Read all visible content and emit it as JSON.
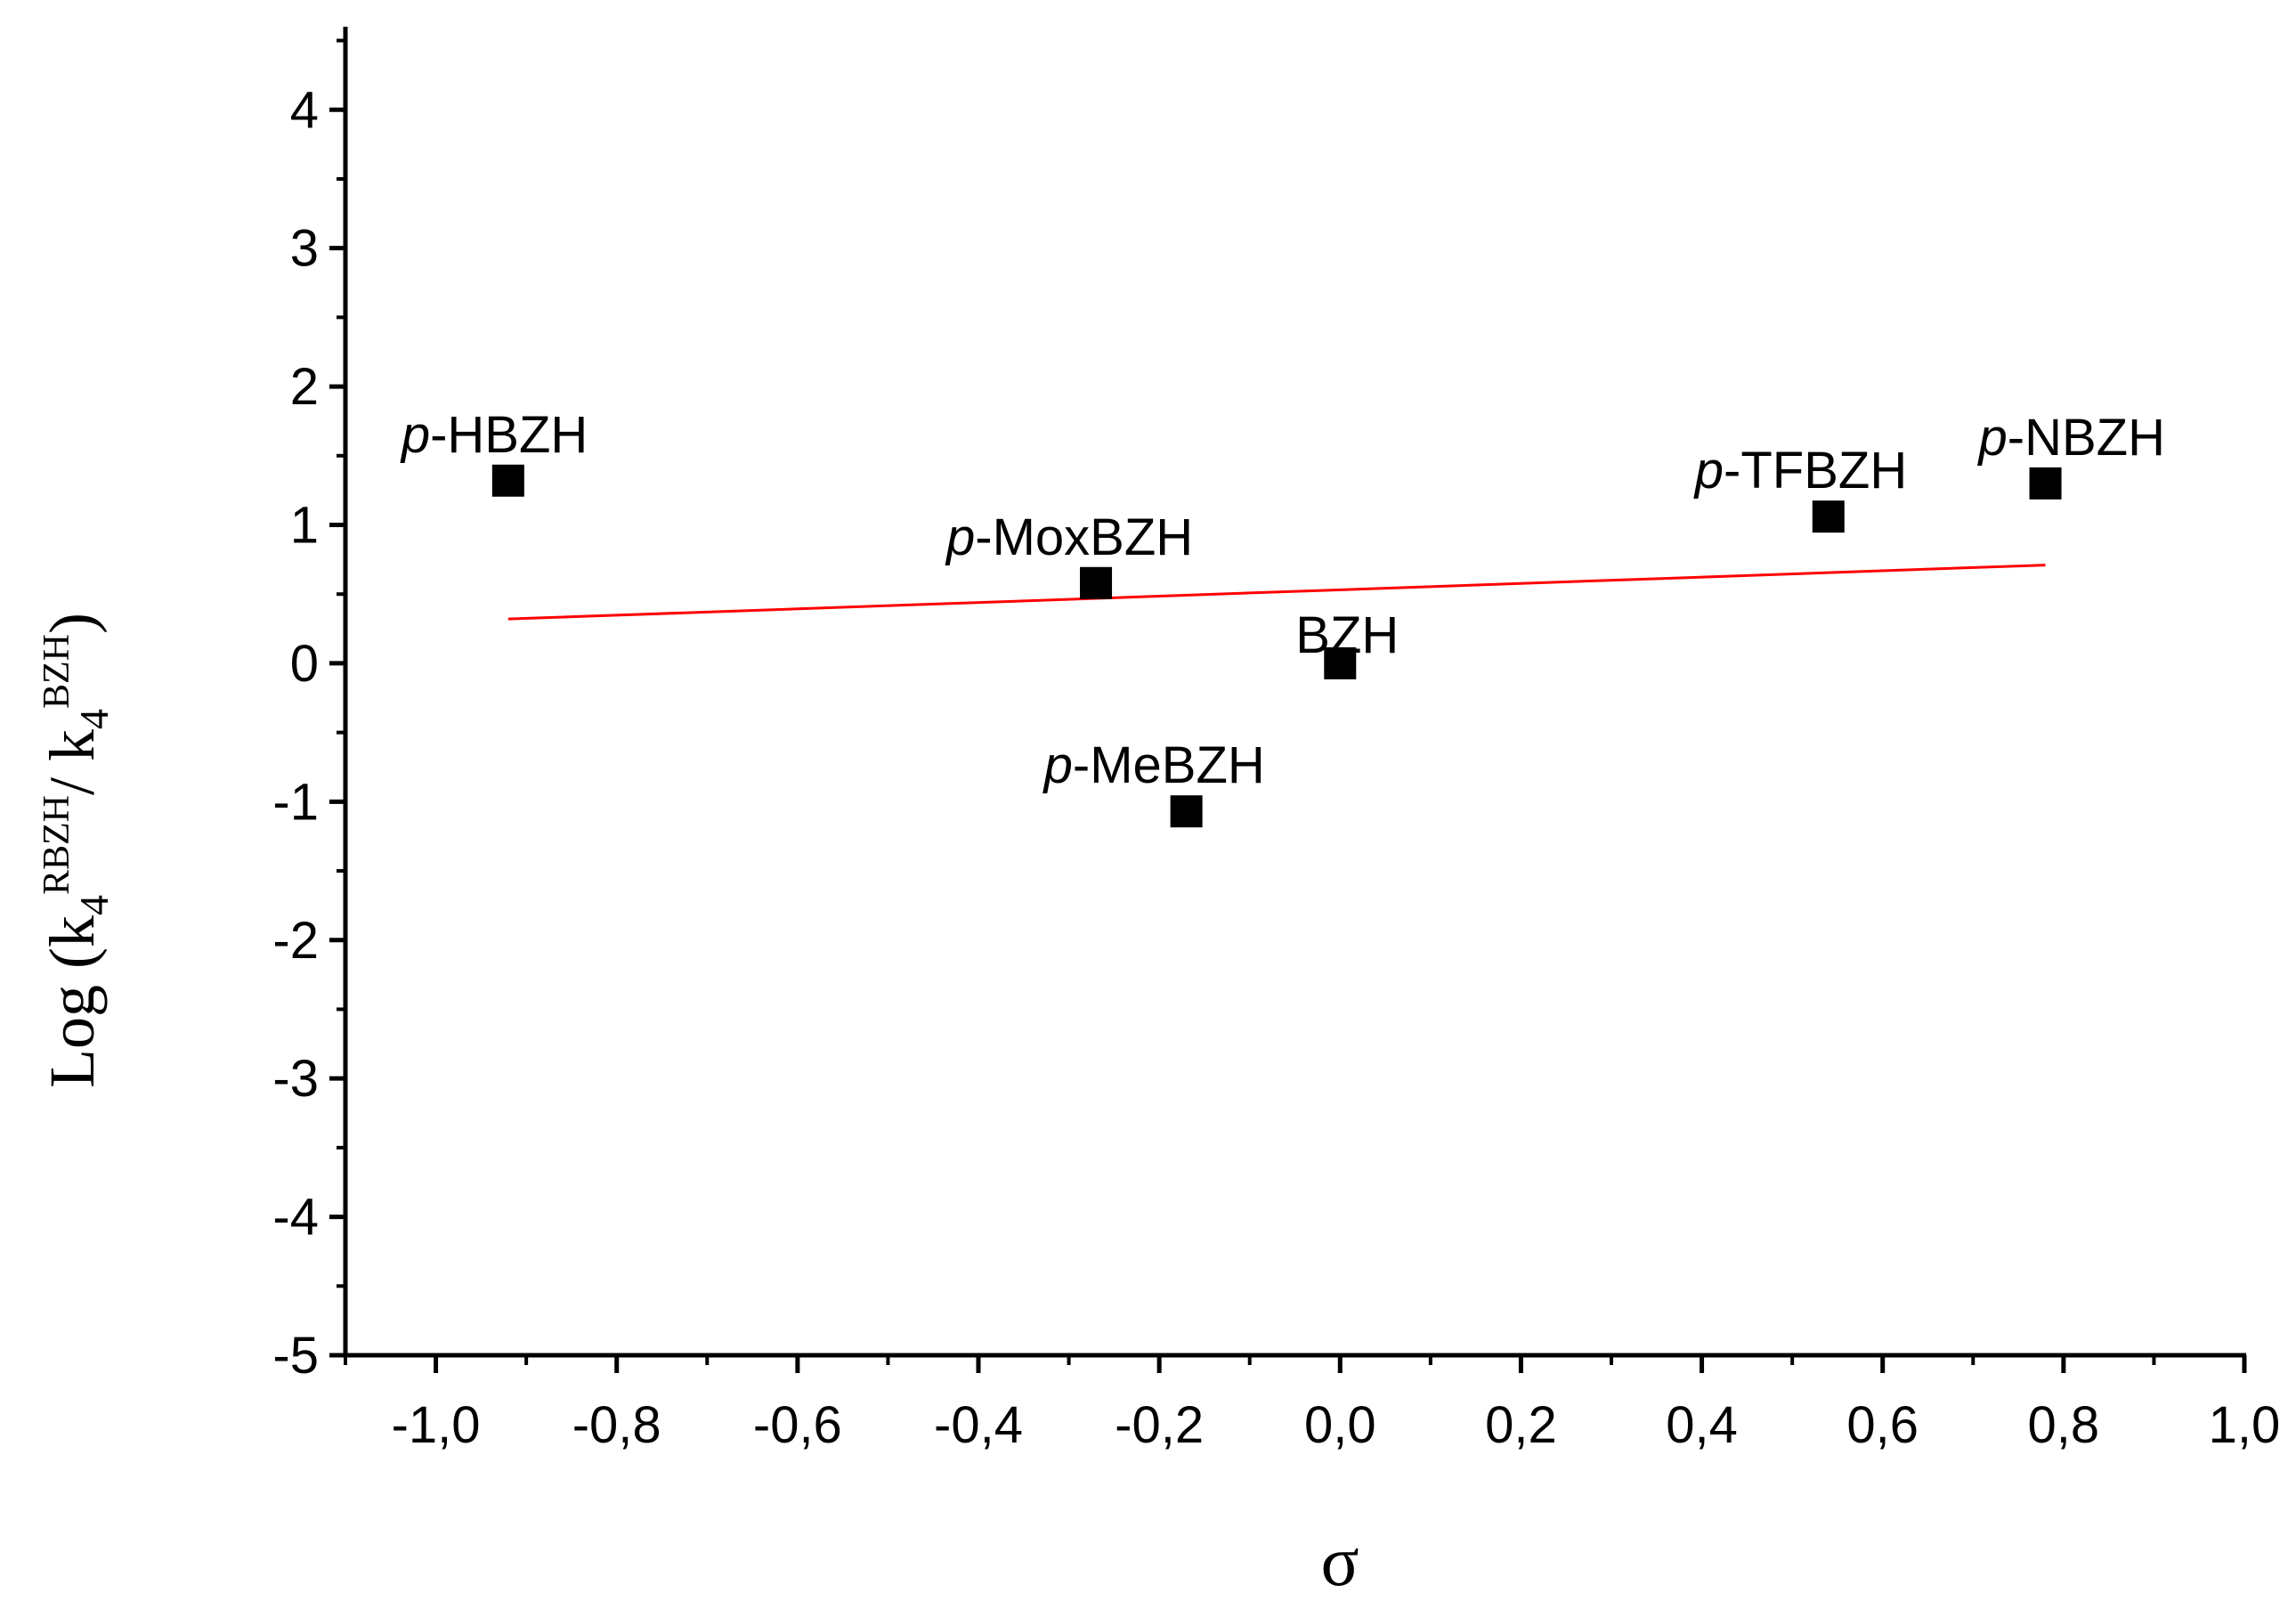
{
  "chart_data": {
    "type": "scatter",
    "title": "",
    "xlabel": "σ",
    "ylabel": {
      "prefix": "Log (k",
      "sub1": "4",
      "sup1": "RBZH",
      "middle": "/ k",
      "sub2": "4",
      "sup2": "BZH",
      "suffix": ")"
    },
    "xlim": [
      -1.1,
      1.0
    ],
    "ylim": [
      -5,
      4.6
    ],
    "x_ticks": [
      {
        "value": -1.0,
        "label": "-1,0"
      },
      {
        "value": -0.8,
        "label": "-0,8"
      },
      {
        "value": -0.6,
        "label": "-0,6"
      },
      {
        "value": -0.4,
        "label": "-0,4"
      },
      {
        "value": -0.2,
        "label": "-0,2"
      },
      {
        "value": 0.0,
        "label": "0,0"
      },
      {
        "value": 0.2,
        "label": "0,2"
      },
      {
        "value": 0.4,
        "label": "0,4"
      },
      {
        "value": 0.6,
        "label": "0,6"
      },
      {
        "value": 0.8,
        "label": "0,8"
      },
      {
        "value": 1.0,
        "label": "1,0"
      }
    ],
    "y_ticks": [
      {
        "value": 4,
        "label": "4"
      },
      {
        "value": 3,
        "label": "3"
      },
      {
        "value": 2,
        "label": "2"
      },
      {
        "value": 1,
        "label": "1"
      },
      {
        "value": 0,
        "label": "0"
      },
      {
        "value": -1,
        "label": "-1"
      },
      {
        "value": -2,
        "label": "-2"
      },
      {
        "value": -3,
        "label": "-3"
      },
      {
        "value": -4,
        "label": "-4"
      },
      {
        "value": -5,
        "label": "-5"
      }
    ],
    "grid": false,
    "series": [
      {
        "points": [
          {
            "x": -0.92,
            "y": 1.32,
            "label_prefix": "p",
            "label_rest": "-HBZH"
          },
          {
            "x": -0.27,
            "y": 0.58,
            "label_prefix": "p",
            "label_rest": "-MoxBZH"
          },
          {
            "x": -0.17,
            "y": -1.07,
            "label_prefix": "p",
            "label_rest": "-MeBZH"
          },
          {
            "x": 0.0,
            "y": 0.0,
            "label_prefix": "",
            "label_rest": "BZH"
          },
          {
            "x": 0.54,
            "y": 1.06,
            "label_prefix": "p",
            "label_rest": "-TFBZH"
          },
          {
            "x": 0.78,
            "y": 1.3,
            "label_prefix": "p",
            "label_rest": "-NBZH"
          }
        ]
      }
    ],
    "fit_line": {
      "x": [
        -0.92,
        0.78
      ],
      "y": [
        0.32,
        0.71
      ],
      "color": "#ff0000"
    },
    "marker_color": "#000000"
  }
}
